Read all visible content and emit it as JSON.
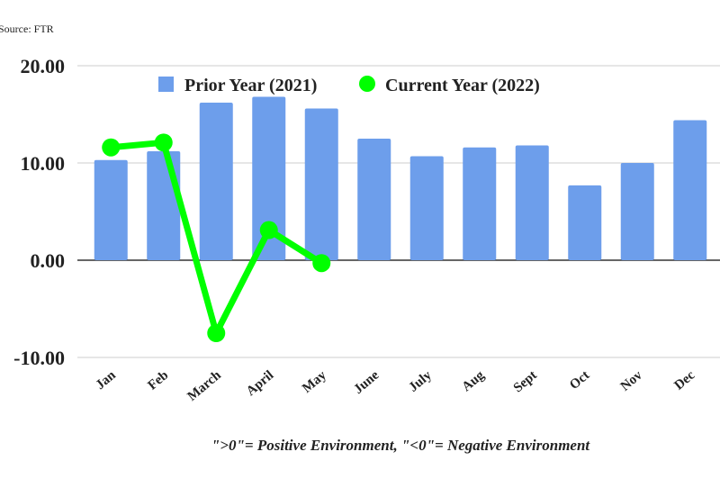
{
  "source_note": "Source: FTR",
  "footnote": "\">0\"= Positive Environment, \"<0\"= Negative Environment",
  "chart_data": {
    "type": "bar+line",
    "categories": [
      "Jan",
      "Feb",
      "March",
      "April",
      "May",
      "June",
      "July",
      "Aug",
      "Sept",
      "Oct",
      "Nov",
      "Dec"
    ],
    "series": [
      {
        "name": "Prior Year (2021)",
        "type": "bar",
        "color": "#6d9eeb",
        "values": [
          10.3,
          11.2,
          16.2,
          16.8,
          15.6,
          12.5,
          10.7,
          11.6,
          11.8,
          7.7,
          10.0,
          14.4
        ]
      },
      {
        "name": "Current Year (2022)",
        "type": "line",
        "color": "#00ff00",
        "values": [
          11.6,
          12.1,
          -7.5,
          3.1,
          -0.3,
          null,
          null,
          null,
          null,
          null,
          null,
          null
        ]
      }
    ],
    "ylim": [
      -10,
      20
    ],
    "yticks": [
      "20.00",
      "10.00",
      "0.00",
      "-10.00"
    ],
    "grid": true,
    "legend": "top"
  }
}
